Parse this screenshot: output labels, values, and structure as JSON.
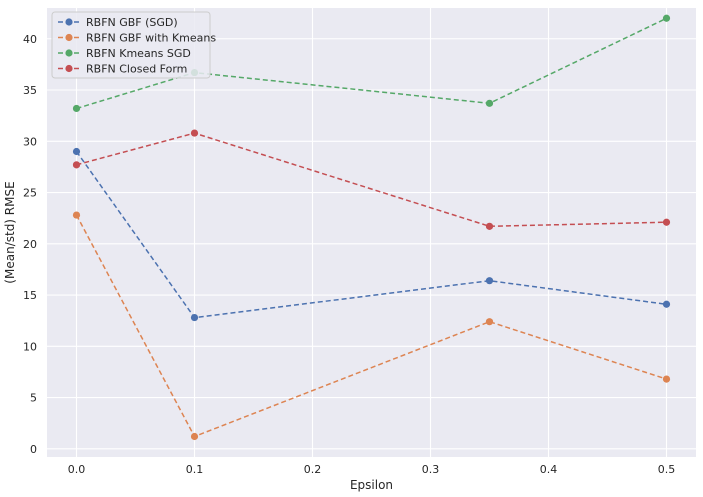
{
  "chart_data": {
    "type": "line",
    "title": "",
    "xlabel": "Epsilon",
    "ylabel": "(Mean/std) RMSE",
    "x": [
      0.0,
      0.1,
      0.35,
      0.5
    ],
    "xticks": [
      0.0,
      0.1,
      0.2,
      0.3,
      0.4,
      0.5
    ],
    "xtick_labels": [
      "0.0",
      "0.1",
      "0.2",
      "0.3",
      "0.4",
      "0.5"
    ],
    "yticks": [
      0,
      5,
      10,
      15,
      20,
      25,
      30,
      35,
      40
    ],
    "ytick_labels": [
      "0",
      "5",
      "10",
      "15",
      "20",
      "25",
      "30",
      "35",
      "40"
    ],
    "xlim": [
      -0.025,
      0.525
    ],
    "ylim": [
      -0.8,
      43.0
    ],
    "grid": true,
    "legend_position": "upper-left",
    "line_style": "dashed",
    "marker": "circle",
    "background": "#eaeaf2",
    "series": [
      {
        "name": "RBFN GBF (SGD)",
        "color": "#4c72b0",
        "values": [
          29.0,
          12.8,
          16.4,
          14.1
        ]
      },
      {
        "name": "RBFN GBF with Kmeans",
        "color": "#dd8452",
        "values": [
          22.8,
          1.2,
          12.4,
          6.8
        ]
      },
      {
        "name": "RBFN  Kmeans SGD",
        "color": "#55a868",
        "values": [
          33.2,
          36.7,
          33.7,
          42.0
        ]
      },
      {
        "name": "RBFN Closed Form",
        "color": "#c44e52",
        "values": [
          27.7,
          30.8,
          21.7,
          22.1
        ]
      }
    ]
  }
}
